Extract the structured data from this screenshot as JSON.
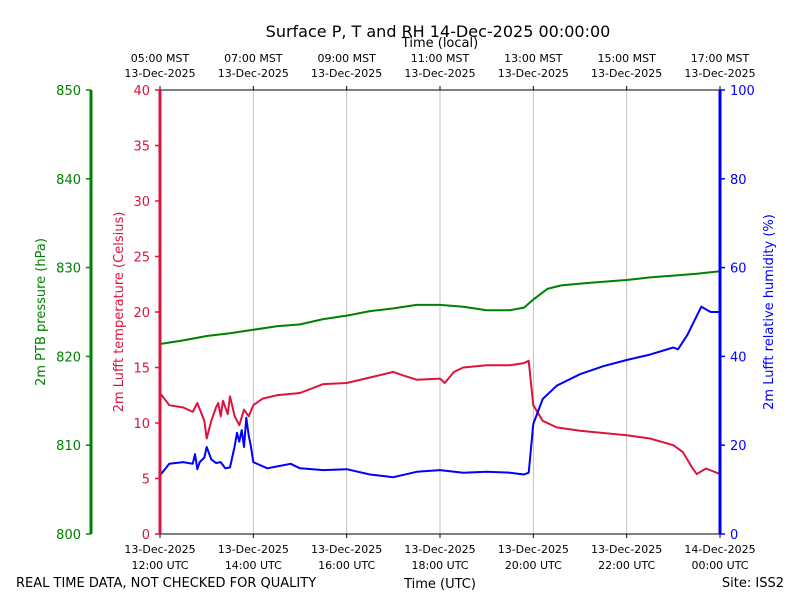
{
  "chart_data": {
    "type": "line",
    "title": "Surface P, T and RH 14-Dec-2025 00:00:00",
    "x_axis_bottom": {
      "label": "Time (UTC)",
      "ticks": [
        {
          "hour": 0,
          "line1": "13-Dec-2025",
          "line2": "12:00 UTC"
        },
        {
          "hour": 2,
          "line1": "13-Dec-2025",
          "line2": "14:00 UTC"
        },
        {
          "hour": 4,
          "line1": "13-Dec-2025",
          "line2": "16:00 UTC"
        },
        {
          "hour": 6,
          "line1": "13-Dec-2025",
          "line2": "18:00 UTC"
        },
        {
          "hour": 8,
          "line1": "13-Dec-2025",
          "line2": "20:00 UTC"
        },
        {
          "hour": 10,
          "line1": "13-Dec-2025",
          "line2": "22:00 UTC"
        },
        {
          "hour": 12,
          "line1": "14-Dec-2025",
          "line2": "00:00 UTC"
        }
      ]
    },
    "x_axis_top": {
      "label": "Time (local)",
      "ticks": [
        {
          "hour": 0,
          "line1": "05:00 MST",
          "line2": "13-Dec-2025"
        },
        {
          "hour": 2,
          "line1": "07:00 MST",
          "line2": "13-Dec-2025"
        },
        {
          "hour": 4,
          "line1": "09:00 MST",
          "line2": "13-Dec-2025"
        },
        {
          "hour": 6,
          "line1": "11:00 MST",
          "line2": "13-Dec-2025"
        },
        {
          "hour": 8,
          "line1": "13:00 MST",
          "line2": "13-Dec-2025"
        },
        {
          "hour": 10,
          "line1": "15:00 MST",
          "line2": "13-Dec-2025"
        },
        {
          "hour": 12,
          "line1": "17:00 MST",
          "line2": "13-Dec-2025"
        }
      ]
    },
    "x_range_hours_since_1200_utc": [
      0,
      12
    ],
    "grid_vertical": true,
    "y_axes": [
      {
        "id": "pressure",
        "label": "2m PTB pressure (hPa)",
        "range": [
          800,
          850
        ],
        "ticks": [
          800,
          810,
          820,
          830,
          840,
          850
        ],
        "color": "#008000",
        "position": "left-outer"
      },
      {
        "id": "temperature",
        "label": "2m Lufft temperature (Celsius)",
        "range": [
          0,
          40
        ],
        "ticks": [
          0,
          5,
          10,
          15,
          20,
          25,
          30,
          35,
          40
        ],
        "color": "#dc143c",
        "position": "left-inner"
      },
      {
        "id": "humidity",
        "label": "2m Lufft relative humidity (%)",
        "range": [
          0,
          100
        ],
        "ticks": [
          0,
          20,
          40,
          60,
          80,
          100
        ],
        "color": "#0000ff",
        "position": "right"
      }
    ],
    "series": [
      {
        "axis": "pressure",
        "color": "#008000",
        "points": [
          [
            0,
            821.4
          ],
          [
            0.5,
            821.8
          ],
          [
            1,
            822.3
          ],
          [
            1.5,
            822.6
          ],
          [
            2,
            823.0
          ],
          [
            2.5,
            823.4
          ],
          [
            3,
            823.6
          ],
          [
            3.5,
            824.2
          ],
          [
            4,
            824.6
          ],
          [
            4.5,
            825.1
          ],
          [
            5,
            825.4
          ],
          [
            5.5,
            825.8
          ],
          [
            6,
            825.8
          ],
          [
            6.5,
            825.6
          ],
          [
            7,
            825.2
          ],
          [
            7.5,
            825.2
          ],
          [
            7.8,
            825.5
          ],
          [
            8,
            826.4
          ],
          [
            8.3,
            827.6
          ],
          [
            8.6,
            828.0
          ],
          [
            9,
            828.2
          ],
          [
            9.5,
            828.4
          ],
          [
            10,
            828.6
          ],
          [
            10.5,
            828.9
          ],
          [
            11,
            829.1
          ],
          [
            11.5,
            829.3
          ],
          [
            12,
            829.6
          ]
        ]
      },
      {
        "axis": "temperature",
        "color": "#dc143c",
        "points": [
          [
            0,
            12.7
          ],
          [
            0.2,
            11.6
          ],
          [
            0.5,
            11.4
          ],
          [
            0.7,
            11.0
          ],
          [
            0.8,
            11.8
          ],
          [
            0.95,
            10.2
          ],
          [
            1.0,
            8.6
          ],
          [
            1.1,
            10.2
          ],
          [
            1.2,
            11.4
          ],
          [
            1.25,
            11.8
          ],
          [
            1.3,
            10.6
          ],
          [
            1.35,
            12.0
          ],
          [
            1.45,
            10.8
          ],
          [
            1.5,
            12.4
          ],
          [
            1.6,
            10.6
          ],
          [
            1.7,
            9.8
          ],
          [
            1.8,
            11.2
          ],
          [
            1.9,
            10.6
          ],
          [
            2,
            11.6
          ],
          [
            2.2,
            12.2
          ],
          [
            2.5,
            12.5
          ],
          [
            3,
            12.7
          ],
          [
            3.5,
            13.5
          ],
          [
            4,
            13.6
          ],
          [
            4.5,
            14.1
          ],
          [
            5,
            14.6
          ],
          [
            5.2,
            14.3
          ],
          [
            5.5,
            13.9
          ],
          [
            6,
            14.0
          ],
          [
            6.1,
            13.6
          ],
          [
            6.3,
            14.6
          ],
          [
            6.5,
            15.0
          ],
          [
            7,
            15.2
          ],
          [
            7.5,
            15.2
          ],
          [
            7.8,
            15.4
          ],
          [
            7.9,
            15.6
          ],
          [
            8.0,
            11.6
          ],
          [
            8.2,
            10.2
          ],
          [
            8.5,
            9.6
          ],
          [
            9,
            9.3
          ],
          [
            9.5,
            9.1
          ],
          [
            10,
            8.9
          ],
          [
            10.5,
            8.6
          ],
          [
            11,
            8.0
          ],
          [
            11.2,
            7.4
          ],
          [
            11.4,
            6.0
          ],
          [
            11.5,
            5.4
          ],
          [
            11.7,
            5.9
          ],
          [
            12,
            5.4
          ]
        ]
      },
      {
        "axis": "humidity",
        "color": "#0000ff",
        "points": [
          [
            0,
            13.2
          ],
          [
            0.2,
            15.8
          ],
          [
            0.5,
            16.2
          ],
          [
            0.7,
            15.8
          ],
          [
            0.75,
            18.0
          ],
          [
            0.8,
            14.6
          ],
          [
            0.85,
            16.2
          ],
          [
            0.95,
            17.2
          ],
          [
            1.0,
            19.6
          ],
          [
            1.1,
            16.8
          ],
          [
            1.2,
            16.0
          ],
          [
            1.3,
            16.2
          ],
          [
            1.4,
            14.8
          ],
          [
            1.5,
            15.0
          ],
          [
            1.6,
            19.8
          ],
          [
            1.65,
            22.8
          ],
          [
            1.7,
            20.8
          ],
          [
            1.75,
            23.4
          ],
          [
            1.8,
            19.6
          ],
          [
            1.85,
            26.2
          ],
          [
            1.9,
            22.2
          ],
          [
            1.95,
            19.6
          ],
          [
            2.0,
            16.2
          ],
          [
            2.3,
            14.8
          ],
          [
            2.5,
            15.2
          ],
          [
            2.8,
            15.8
          ],
          [
            3,
            14.8
          ],
          [
            3.5,
            14.4
          ],
          [
            4,
            14.6
          ],
          [
            4.5,
            13.4
          ],
          [
            5,
            12.8
          ],
          [
            5.5,
            14.0
          ],
          [
            6,
            14.4
          ],
          [
            6.5,
            13.8
          ],
          [
            7,
            14.0
          ],
          [
            7.5,
            13.8
          ],
          [
            7.8,
            13.4
          ],
          [
            7.9,
            13.8
          ],
          [
            8.0,
            24.8
          ],
          [
            8.2,
            30.4
          ],
          [
            8.5,
            33.4
          ],
          [
            9,
            36.0
          ],
          [
            9.5,
            37.8
          ],
          [
            10,
            39.2
          ],
          [
            10.5,
            40.4
          ],
          [
            11,
            42.0
          ],
          [
            11.1,
            41.6
          ],
          [
            11.3,
            44.8
          ],
          [
            11.6,
            51.2
          ],
          [
            11.8,
            50.0
          ],
          [
            12,
            50.0
          ]
        ]
      }
    ]
  },
  "footer": {
    "note": "REAL TIME DATA, NOT CHECKED FOR QUALITY",
    "site": "Site: ISS2"
  }
}
